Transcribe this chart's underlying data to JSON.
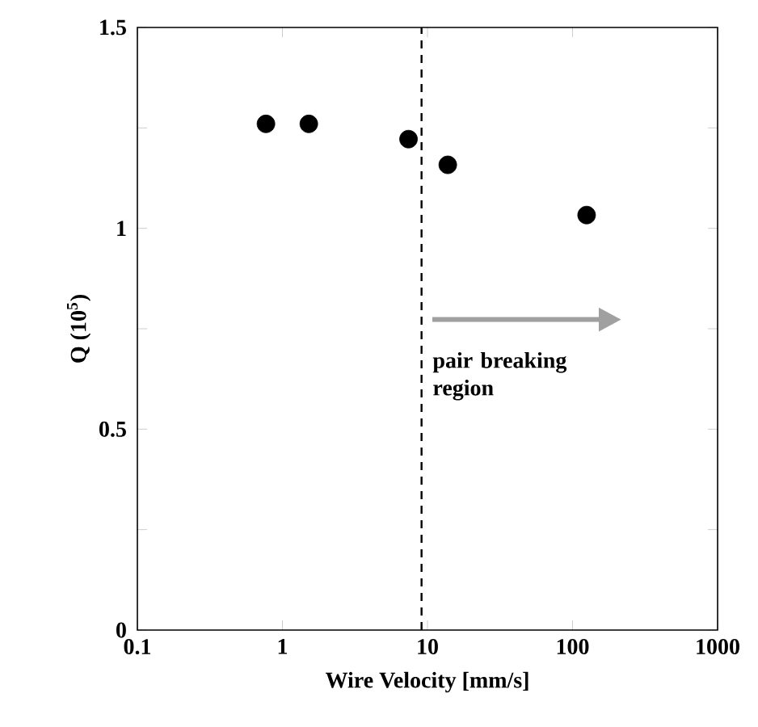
{
  "chart_data": {
    "type": "scatter",
    "xlabel": "Wire Velocity  [mm/s]",
    "ylabel": "Q  (10$^{5}$)",
    "x": [
      0.77,
      1.52,
      7.4,
      13.8,
      125
    ],
    "values": [
      1.26,
      1.26,
      1.222,
      1.158,
      1.033
    ],
    "color": "#000000",
    "marker": "circle",
    "log": "x",
    "xlim": [
      0.1,
      1000
    ],
    "xticks": [
      0.1,
      1,
      10,
      100,
      1000
    ],
    "ylim": [
      0,
      1.5
    ],
    "yticks": [
      0,
      {
        "value": 0.25,
        "label": null
      },
      0.5,
      {
        "value": 0.75,
        "label": null
      },
      1,
      {
        "value": 1.25,
        "label": null
      },
      1.5
    ],
    "ref_lines": [
      {
        "axis": "x",
        "value": 9.1,
        "line_style": "dashed",
        "color": "#000000"
      }
    ],
    "annotations": [
      {
        "text": "pair breaking region",
        "x": 10,
        "y": 0.773
      }
    ]
  }
}
